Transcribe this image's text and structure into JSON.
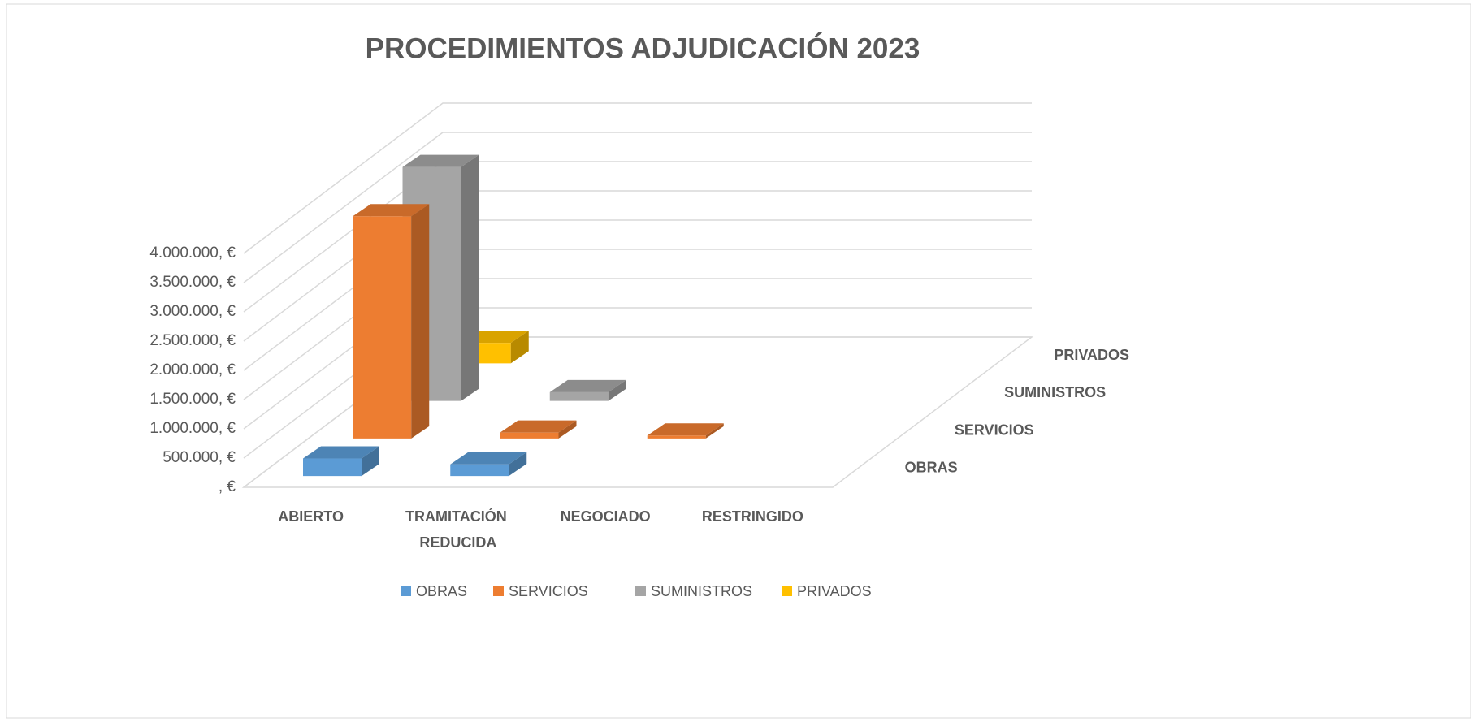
{
  "chart_data": {
    "type": "bar3d",
    "title": "PROCEDIMIENTOS ADJUDICACIÓN 2023",
    "categories": [
      "ABIERTO",
      "TRAMITACIÓN REDUCIDA",
      "NEGOCIADO",
      "RESTRINGIDO"
    ],
    "series": [
      {
        "name": "OBRAS",
        "color": "#5b9bd5",
        "values": [
          300000,
          200000,
          0,
          0
        ]
      },
      {
        "name": "SERVICIOS",
        "color": "#ed7d31",
        "values": [
          3800000,
          100000,
          50000,
          0
        ]
      },
      {
        "name": "SUMINISTROS",
        "color": "#a5a5a5",
        "values": [
          4000000,
          150000,
          0,
          0
        ]
      },
      {
        "name": "PRIVADOS",
        "color": "#ffc000",
        "values": [
          350000,
          0,
          0,
          0
        ]
      }
    ],
    "ylim": [
      0,
      4000000
    ],
    "yticks": [
      {
        "value": 0,
        "label": ", €"
      },
      {
        "value": 500000,
        "label": "500.000, €"
      },
      {
        "value": 1000000,
        "label": "1.000.000, €"
      },
      {
        "value": 1500000,
        "label": "1.500.000, €"
      },
      {
        "value": 2000000,
        "label": "2.000.000, €"
      },
      {
        "value": 2500000,
        "label": "2.500.000, €"
      },
      {
        "value": 3000000,
        "label": "3.000.000, €"
      },
      {
        "value": 3500000,
        "label": "3.500.000, €"
      },
      {
        "value": 4000000,
        "label": "4.000.000, €"
      }
    ],
    "grid": true,
    "legend": "bottom"
  }
}
